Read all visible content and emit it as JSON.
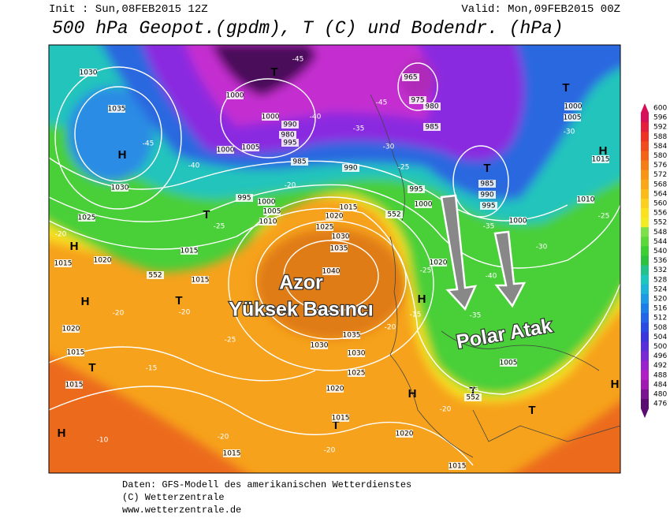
{
  "header": {
    "init": "Init : Sun,08FEB2015 12Z",
    "valid": "Valid: Mon,09FEB2015 00Z",
    "title": "500 hPa Geopot.(gpdm), T (C) und Bodendr. (hPa)"
  },
  "annotations": {
    "high": [
      "Azor",
      "Yüksek Basıncı"
    ],
    "polar": "Polar Atak"
  },
  "colorbar": {
    "levels": [
      600,
      596,
      592,
      588,
      584,
      580,
      576,
      572,
      568,
      564,
      560,
      556,
      552,
      548,
      544,
      540,
      536,
      532,
      528,
      524,
      520,
      516,
      512,
      508,
      504,
      500,
      496,
      492,
      488,
      484,
      480,
      476
    ],
    "colors": [
      "#d8105a",
      "#e41e3c",
      "#ee3224",
      "#f24a1c",
      "#f46418",
      "#f67c16",
      "#f89416",
      "#faa818",
      "#fbbc1a",
      "#fcd01c",
      "#fce21e",
      "#f4ec20",
      "#7ee048",
      "#5cd83a",
      "#3ccf34",
      "#2cc240",
      "#22c28c",
      "#1ec6c0",
      "#1eb4d8",
      "#1e9ae4",
      "#1e7ee8",
      "#2464e8",
      "#2a4ce4",
      "#3a38dc",
      "#5a2ed8",
      "#7a28d4",
      "#9a24cc",
      "#b020c4",
      "#a01cb0",
      "#7a1490",
      "#5a0c70"
    ]
  },
  "map_labels": {
    "centers": [
      "H",
      "T",
      "T",
      "T",
      "T",
      "H",
      "H",
      "T",
      "T",
      "H",
      "T",
      "H",
      "T",
      "H",
      "H",
      "T",
      "H"
    ],
    "pressure": [
      1030,
      1035,
      1030,
      1025,
      1020,
      1015,
      1015,
      1015,
      1020,
      1015,
      1015,
      1020,
      1015,
      1020,
      1015,
      1015,
      1030,
      1035,
      1030,
      1025,
      1040,
      1035,
      1030,
      1025,
      1020,
      1015,
      1010,
      1005,
      1000,
      995,
      990,
      995,
      1000,
      985,
      980,
      975,
      965,
      985,
      990,
      995,
      1000,
      1000,
      1005,
      1010,
      1015,
      1005,
      1020,
      1000,
      1000,
      990,
      980,
      995,
      985,
      1000,
      1005
    ],
    "temperature": [
      -45,
      -45,
      -40,
      -35,
      -30,
      -25,
      -20,
      -25,
      -20,
      -20,
      -20,
      -25,
      -15,
      -15,
      -20,
      -25,
      -40,
      -35,
      -30,
      -25,
      -10,
      -20,
      -20,
      -20,
      -25,
      -30,
      -35,
      -45,
      -40
    ],
    "geopotential": [
      552,
      552,
      552
    ]
  },
  "footer": [
    "Daten: GFS-Modell des amerikanischen Wetterdienstes",
    "(C) Wetterzentrale",
    "www.wetterzentrale.de"
  ]
}
